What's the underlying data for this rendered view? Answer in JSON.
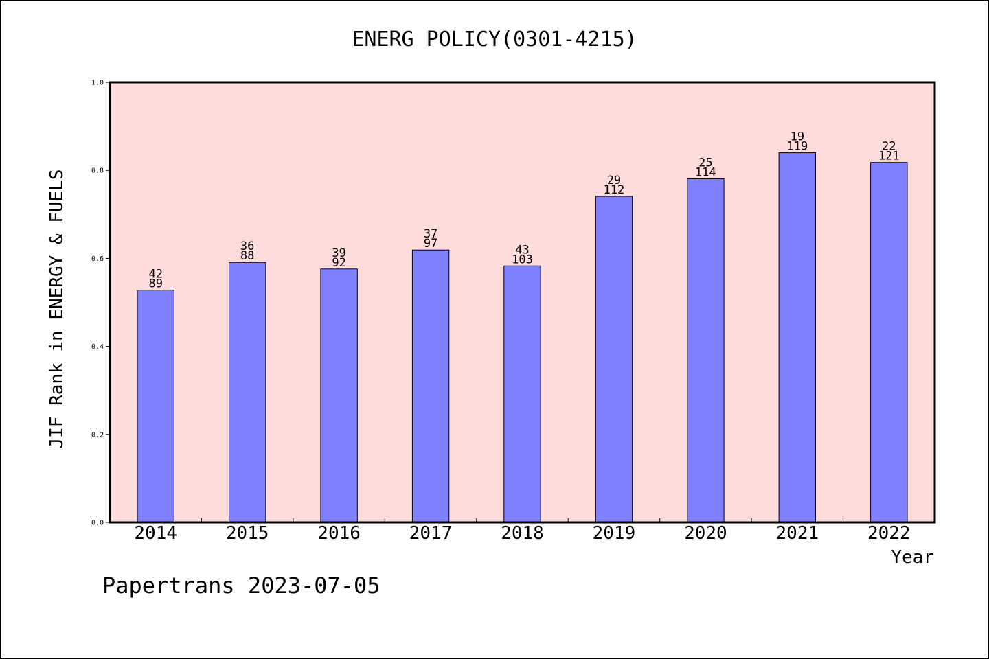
{
  "chart_data": {
    "type": "bar",
    "title": "ENERG POLICY(0301-4215)",
    "xlabel": "Year",
    "ylabel": "JIF Rank in ENERGY & FUELS",
    "ylim": [
      0,
      1.0
    ],
    "yticks": [
      "0.0",
      "0.2",
      "0.4",
      "0.6",
      "0.8",
      "1.0"
    ],
    "categories": [
      "2014",
      "2015",
      "2016",
      "2017",
      "2018",
      "2019",
      "2020",
      "2021",
      "2022"
    ],
    "values": [
      0.528,
      0.591,
      0.576,
      0.619,
      0.583,
      0.741,
      0.781,
      0.84,
      0.818
    ],
    "rank_labels": [
      "42",
      "36",
      "39",
      "37",
      "43",
      "29",
      "25",
      "19",
      "22"
    ],
    "total_labels": [
      "89",
      "88",
      "92",
      "97",
      "103",
      "112",
      "114",
      "119",
      "121"
    ],
    "grid": false,
    "colors": {
      "bar": "#8080ff",
      "plot_background": "#ffdcdc",
      "axis": "#000000"
    }
  },
  "footer": {
    "source": "Papertrans 2023-07-05"
  }
}
